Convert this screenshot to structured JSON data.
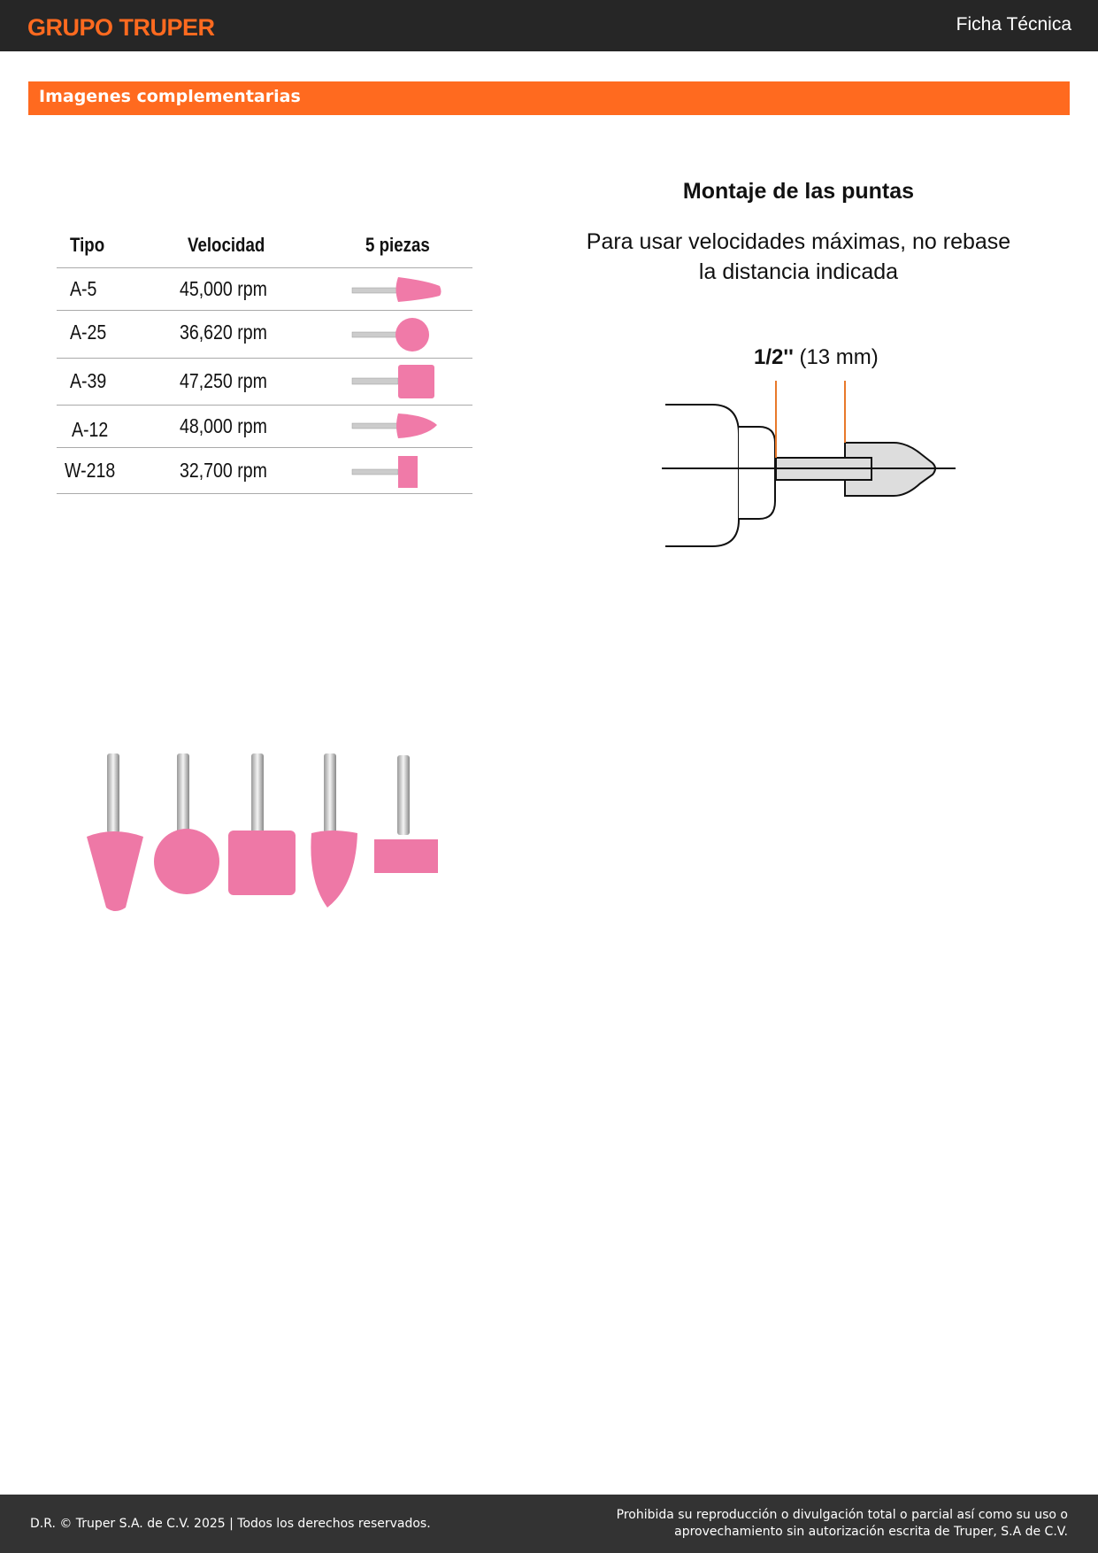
{
  "header": {
    "logo": "GRUPO TRUPER",
    "title": "Ficha Técnica"
  },
  "section_title": "Imagenes complementarias",
  "table": {
    "headers": [
      "Tipo",
      "Velocidad",
      "5 piezas"
    ],
    "rows": [
      {
        "tipo": "A-5",
        "velocidad": "45,000 rpm",
        "shape": "cone"
      },
      {
        "tipo": "A-25",
        "velocidad": "36,620 rpm",
        "shape": "ball"
      },
      {
        "tipo": "A-39",
        "velocidad": "47,250 rpm",
        "shape": "cylinder"
      },
      {
        "tipo": "A-12",
        "velocidad": "48,000 rpm",
        "shape": "bullet"
      },
      {
        "tipo": "W-218",
        "velocidad": "32,700 rpm",
        "shape": "wheel"
      }
    ]
  },
  "diagram": {
    "title": "Montaje de las puntas",
    "subtitle_line1": "Para usar velocidades máximas, no rebase",
    "subtitle_line2": "la distancia indicada",
    "dimension_bold": "1/2''",
    "dimension": "(13 mm)"
  },
  "footer": {
    "left": "D.R. © Truper S.A. de C.V. 2025 | Todos los derechos reservados.",
    "right_line1": "Prohibida su reproducción o divulgación total o parcial así como su uso o",
    "right_line2": "aprovechamiento sin autorización escrita de Truper, S.A de C.V."
  },
  "colors": {
    "brand": "#ff6a1f",
    "header_bg": "#262626",
    "footer_bg": "#333333",
    "stone": "#f07aa8"
  }
}
